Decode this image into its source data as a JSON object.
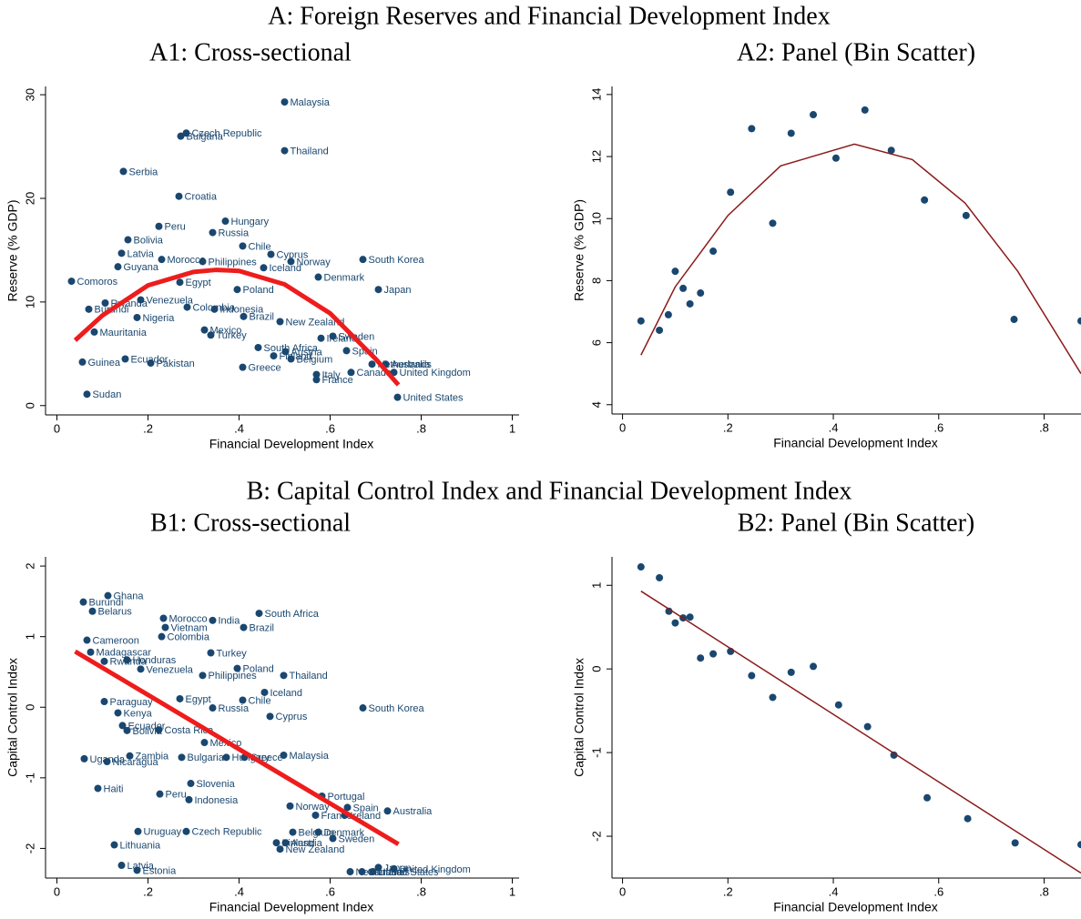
{
  "panels": [
    {
      "title": "A: Foreign Reserves and Financial Development Index"
    },
    {
      "title": "B: Capital Control Index and Financial Development Index"
    }
  ],
  "chart_data": [
    {
      "type": "scatter",
      "title": "A1: Cross-sectional",
      "x_label": "Financial Development Index",
      "y_label": "Reserve (% GDP)",
      "xlim": [
        -0.025,
        1.015
      ],
      "ylim": [
        -0.9,
        30.8
      ],
      "xticks": [
        0,
        {
          "value": 0.2,
          "label": ".2"
        },
        {
          "value": 0.4,
          "label": ".4"
        },
        {
          "value": 0.6,
          "label": ".6"
        },
        {
          "value": 0.8,
          "label": ".8"
        },
        1
      ],
      "yticks": [
        0,
        10,
        20,
        30
      ],
      "color": "#1a476f",
      "point_labels": [
        "Malaysia",
        "Czech Republic",
        "Bulgaria",
        "Thailand",
        "Serbia",
        "Croatia",
        "Hungary",
        "Peru",
        "Russia",
        "Bolivia",
        "Chile",
        "Latvia",
        "Cyprus",
        "South Korea",
        "Morocco",
        "Philippines",
        "Norway",
        "Iceland",
        "Denmark",
        "Guyana",
        "Egypt",
        "Poland",
        "Japan",
        "Comoros",
        "Colombia",
        "Indonesia",
        "Venezuela",
        "Rwanda",
        "Burundi",
        "Brazil",
        "Nigeria",
        "New Zealand",
        "Mexico",
        "Turkey",
        "Mauritania",
        "Sweden",
        "Ireland",
        "Spain",
        "South Africa",
        "Austria",
        "Finland",
        "Belgium",
        "Pakistan",
        "Greece",
        "Australia",
        "Netherlands",
        "Canada",
        "United Kingdom",
        "Italy",
        "France",
        "Guinea",
        "Ecuador",
        "Sudan",
        "United States"
      ],
      "x": [
        0.5,
        0.284,
        0.272,
        0.5,
        0.146,
        0.268,
        0.37,
        0.224,
        0.342,
        0.156,
        0.408,
        0.142,
        0.47,
        0.672,
        0.23,
        0.32,
        0.514,
        0.454,
        0.574,
        0.134,
        0.27,
        0.396,
        0.706,
        0.032,
        0.286,
        0.346,
        0.184,
        0.106,
        0.07,
        0.41,
        0.176,
        0.49,
        0.324,
        0.338,
        0.082,
        0.606,
        0.58,
        0.636,
        0.442,
        0.502,
        0.476,
        0.514,
        0.206,
        0.408,
        0.722,
        0.692,
        0.646,
        0.74,
        0.57,
        0.57,
        0.056,
        0.15,
        0.066,
        0.748
      ],
      "values": [
        29.3,
        26.3,
        26.0,
        24.6,
        22.6,
        20.2,
        17.8,
        17.3,
        16.7,
        16.0,
        15.4,
        14.7,
        14.6,
        14.1,
        14.1,
        13.9,
        13.9,
        13.3,
        12.4,
        13.4,
        11.9,
        11.2,
        11.2,
        12.0,
        9.5,
        9.3,
        10.2,
        9.9,
        9.3,
        8.6,
        8.5,
        8.1,
        7.3,
        6.8,
        7.1,
        6.7,
        6.5,
        5.3,
        5.6,
        5.2,
        4.8,
        4.5,
        4.1,
        3.7,
        4.0,
        4.0,
        3.2,
        3.2,
        3.0,
        2.5,
        4.2,
        4.5,
        1.1,
        0.8
      ],
      "fit": {
        "x": [
          0.04,
          0.1,
          0.2,
          0.3,
          0.35,
          0.4,
          0.5,
          0.6,
          0.7,
          0.75
        ],
        "values": [
          6.3,
          8.7,
          11.6,
          12.9,
          13.1,
          13.0,
          11.7,
          8.9,
          4.5,
          2.0
        ],
        "color": "#ee1c1c",
        "style": "thick"
      }
    },
    {
      "type": "scatter",
      "title": "A2: Panel (Bin Scatter)",
      "x_label": "Financial Development Index",
      "y_label": "Reserve (% GDP)",
      "xlim": [
        -0.02,
        0.87
      ],
      "ylim": [
        3.7,
        14.26
      ],
      "xticks": [
        0,
        {
          "value": 0.2,
          "label": ".2"
        },
        {
          "value": 0.4,
          "label": ".4"
        },
        {
          "value": 0.6,
          "label": ".6"
        },
        {
          "value": 0.8,
          "label": ".8"
        }
      ],
      "yticks": [
        4,
        6,
        8,
        10,
        12,
        14
      ],
      "color": "#1a476f",
      "x": [
        0.035,
        0.07,
        0.087,
        0.1,
        0.115,
        0.128,
        0.148,
        0.172,
        0.205,
        0.245,
        0.285,
        0.32,
        0.362,
        0.405,
        0.46,
        0.51,
        0.573,
        0.652,
        0.743,
        0.87
      ],
      "values": [
        6.7,
        6.4,
        6.9,
        8.3,
        7.75,
        7.25,
        7.6,
        8.95,
        10.85,
        12.9,
        9.85,
        12.75,
        13.35,
        11.95,
        13.5,
        12.2,
        10.6,
        10.1,
        6.75,
        6.7
      ],
      "fit": {
        "x": [
          0.035,
          0.1,
          0.2,
          0.3,
          0.44,
          0.55,
          0.65,
          0.75,
          0.87
        ],
        "values": [
          5.6,
          7.8,
          10.1,
          11.7,
          12.4,
          11.9,
          10.5,
          8.3,
          5.0
        ],
        "color": "#8b1a1a",
        "style": "thin"
      }
    },
    {
      "type": "scatter",
      "title": "B1: Cross-sectional",
      "x_label": "Financial Development Index",
      "y_label": "Capital Control Index",
      "xlim": [
        -0.025,
        1.015
      ],
      "ylim": [
        -2.42,
        2.13
      ],
      "xticks": [
        0,
        {
          "value": 0.2,
          "label": ".2"
        },
        {
          "value": 0.4,
          "label": ".4"
        },
        {
          "value": 0.6,
          "label": ".6"
        },
        {
          "value": 0.8,
          "label": ".8"
        },
        1
      ],
      "yticks": [
        -2,
        -1,
        0,
        1,
        2
      ],
      "color": "#1a476f",
      "point_labels": [
        "South Africa",
        "India",
        "Brazil",
        "Morocco",
        "Vietnam",
        "Colombia",
        "Cameroon",
        "Ghana",
        "Burundi",
        "Belarus",
        "Turkey",
        "Madagascar",
        "Rwanda",
        "Honduras",
        "Venezuela",
        "Poland",
        "Philippines",
        "Thailand",
        "Iceland",
        "Chile",
        "Egypt",
        "Paraguay",
        "Russia",
        "South Korea",
        "Kenya",
        "Cyprus",
        "Ecuador",
        "Costa Rica",
        "Bolivia",
        "Mexico",
        "Malaysia",
        "Zambia",
        "Bulgaria",
        "Hungary",
        "Greece",
        "Uganda",
        "Nicaragua",
        "Slovenia",
        "Haiti",
        "Peru",
        "Indonesia",
        "Portugal",
        "Norway",
        "Spain",
        "Australia",
        "Ireland",
        "France",
        "Uruguay",
        "Czech Republic",
        "Belgium",
        "Denmark",
        "Sweden",
        "Austria",
        "Finland",
        "New Zealand",
        "Lithuania",
        "Latvia",
        "Estonia",
        "Japan",
        "United Kingdom",
        "Canada",
        "United States",
        "Netherlands"
      ],
      "x": [
        0.444,
        0.342,
        0.41,
        0.234,
        0.238,
        0.23,
        0.066,
        0.112,
        0.058,
        0.078,
        0.338,
        0.074,
        0.104,
        0.154,
        0.184,
        0.396,
        0.32,
        0.498,
        0.456,
        0.408,
        0.27,
        0.104,
        0.342,
        0.672,
        0.134,
        0.468,
        0.144,
        0.224,
        0.154,
        0.324,
        0.498,
        0.16,
        0.274,
        0.372,
        0.412,
        0.06,
        0.11,
        0.294,
        0.09,
        0.226,
        0.29,
        0.582,
        0.512,
        0.638,
        0.726,
        0.632,
        0.568,
        0.178,
        0.284,
        0.518,
        0.574,
        0.606,
        0.502,
        0.482,
        0.49,
        0.126,
        0.142,
        0.176,
        0.706,
        0.74,
        0.67,
        0.694,
        0.644
      ],
      "values": [
        1.33,
        1.23,
        1.13,
        1.26,
        1.13,
        1.0,
        0.95,
        1.58,
        1.49,
        1.36,
        0.77,
        0.78,
        0.65,
        0.67,
        0.54,
        0.55,
        0.45,
        0.45,
        0.21,
        0.1,
        0.12,
        0.08,
        -0.01,
        -0.01,
        -0.08,
        -0.13,
        -0.26,
        -0.32,
        -0.33,
        -0.5,
        -0.68,
        -0.69,
        -0.71,
        -0.71,
        -0.71,
        -0.73,
        -0.77,
        -1.08,
        -1.15,
        -1.23,
        -1.31,
        -1.26,
        -1.4,
        -1.42,
        -1.47,
        -1.53,
        -1.53,
        -1.76,
        -1.76,
        -1.77,
        -1.77,
        -1.86,
        -1.92,
        -1.92,
        -2.01,
        -1.95,
        -2.24,
        -2.31,
        -2.27,
        -2.29,
        -2.33,
        -2.33,
        -2.33
      ],
      "fit": {
        "x": [
          0.04,
          0.75
        ],
        "values": [
          0.79,
          -1.94
        ],
        "color": "#ee1c1c",
        "style": "thick"
      }
    },
    {
      "type": "scatter",
      "title": "B2: Panel (Bin Scatter)",
      "x_label": "Financial Development Index",
      "y_label": "Capital Control Index",
      "xlim": [
        -0.02,
        0.87
      ],
      "ylim": [
        -2.5,
        1.34
      ],
      "xticks": [
        0,
        {
          "value": 0.2,
          "label": ".2"
        },
        {
          "value": 0.4,
          "label": ".4"
        },
        {
          "value": 0.6,
          "label": ".6"
        },
        {
          "value": 0.8,
          "label": ".8"
        }
      ],
      "yticks": [
        -2,
        -1,
        0,
        1
      ],
      "color": "#1a476f",
      "x": [
        0.035,
        0.07,
        0.088,
        0.1,
        0.115,
        0.128,
        0.148,
        0.172,
        0.205,
        0.245,
        0.285,
        0.32,
        0.362,
        0.41,
        0.465,
        0.515,
        0.578,
        0.655,
        0.745,
        0.87
      ],
      "values": [
        1.22,
        1.09,
        0.69,
        0.55,
        0.61,
        0.62,
        0.13,
        0.18,
        0.21,
        -0.08,
        -0.34,
        -0.04,
        0.03,
        -0.43,
        -0.69,
        -1.03,
        -1.54,
        -1.79,
        -2.08,
        -2.1
      ],
      "fit": {
        "x": [
          0.035,
          0.87
        ],
        "values": [
          0.93,
          -2.44
        ],
        "color": "#8b1a1a",
        "style": "thin"
      }
    }
  ]
}
